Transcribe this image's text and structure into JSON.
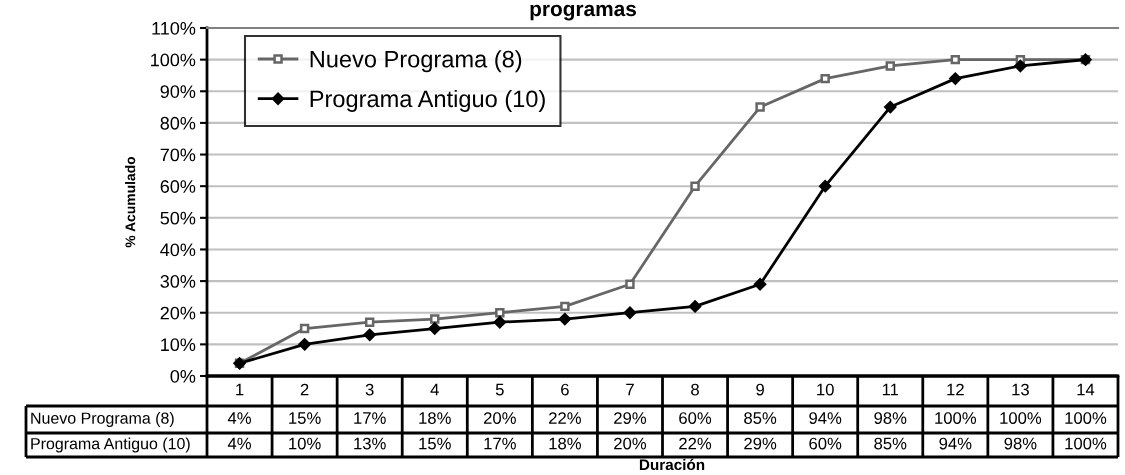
{
  "chart_data": {
    "type": "line",
    "title": "programas",
    "xlabel": "Duración",
    "ylabel": "% Acumulado",
    "categories": [
      "1",
      "2",
      "3",
      "4",
      "5",
      "6",
      "7",
      "8",
      "9",
      "10",
      "11",
      "12",
      "13",
      "14"
    ],
    "series": [
      {
        "name": "Nuevo Programa (8)",
        "color": "#666666",
        "marker": "square",
        "values": [
          4,
          15,
          17,
          18,
          20,
          22,
          29,
          60,
          85,
          94,
          98,
          100,
          100,
          100
        ],
        "value_labels": [
          "4%",
          "15%",
          "17%",
          "18%",
          "20%",
          "22%",
          "29%",
          "60%",
          "85%",
          "94%",
          "98%",
          "100%",
          "100%",
          "100%"
        ]
      },
      {
        "name": "Programa Antiguo (10)",
        "color": "#000000",
        "marker": "diamond",
        "values": [
          4,
          10,
          13,
          15,
          17,
          18,
          20,
          22,
          29,
          60,
          85,
          94,
          98,
          100
        ],
        "value_labels": [
          "4%",
          "10%",
          "13%",
          "15%",
          "17%",
          "18%",
          "20%",
          "22%",
          "29%",
          "60%",
          "85%",
          "94%",
          "98%",
          "100%"
        ]
      }
    ],
    "ylim": [
      0,
      110
    ],
    "yticks": [
      {
        "value": 0,
        "label": "0%"
      },
      {
        "value": 10,
        "label": "10%"
      },
      {
        "value": 20,
        "label": "20%"
      },
      {
        "value": 30,
        "label": "30%"
      },
      {
        "value": 40,
        "label": "40%"
      },
      {
        "value": 50,
        "label": "50%"
      },
      {
        "value": 60,
        "label": "60%"
      },
      {
        "value": 70,
        "label": "70%"
      },
      {
        "value": 80,
        "label": "80%"
      },
      {
        "value": 90,
        "label": "90%"
      },
      {
        "value": 100,
        "label": "100%"
      },
      {
        "value": 110,
        "label": "110%"
      }
    ],
    "grid": "y",
    "legend": "top left",
    "line_style": "solid"
  }
}
